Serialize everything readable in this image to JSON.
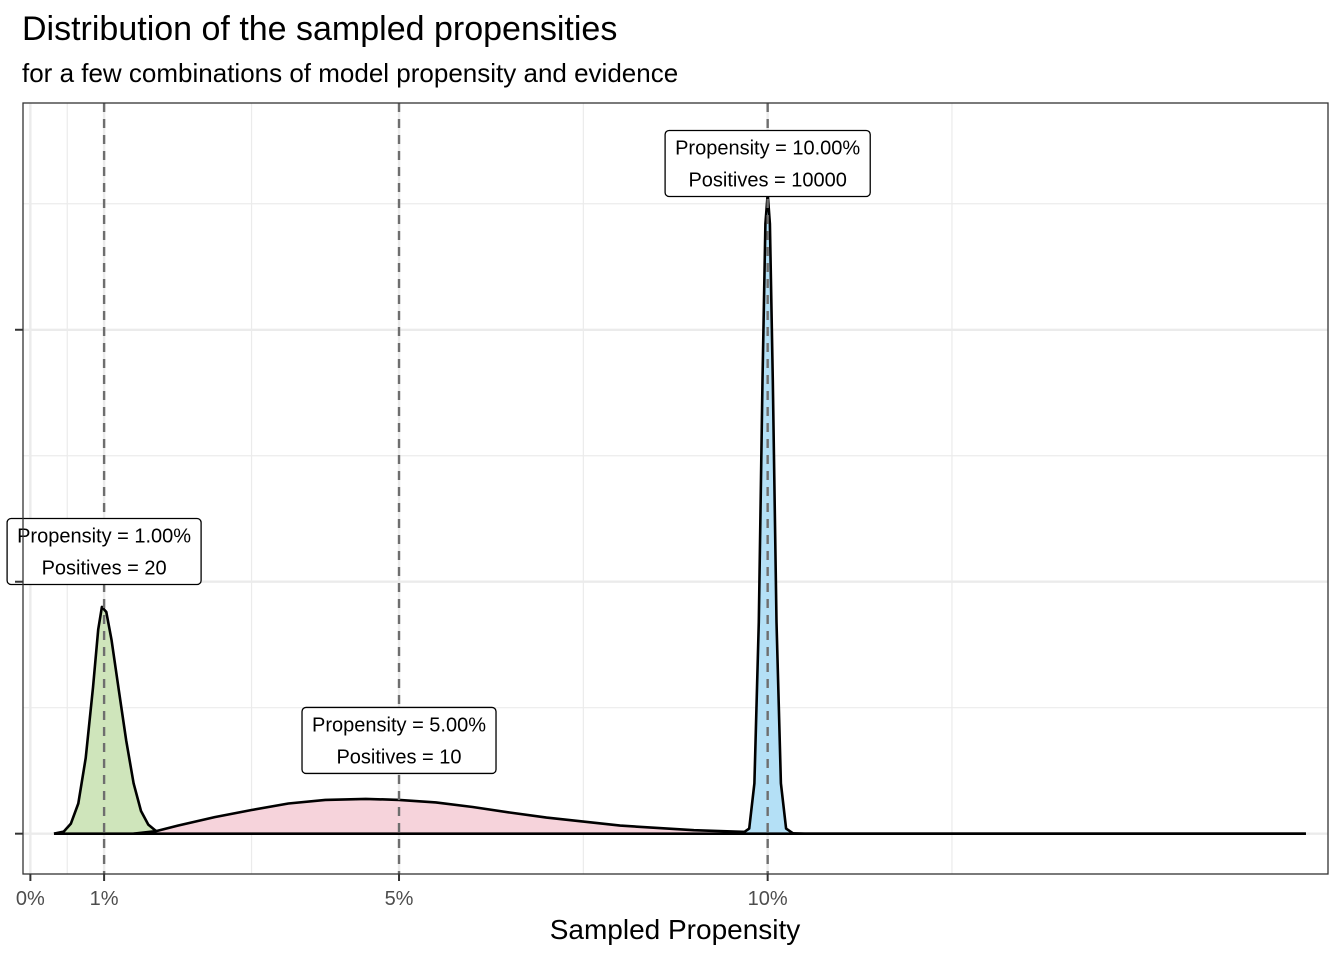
{
  "chart_data": {
    "type": "area",
    "title": "Distribution of the sampled propensities",
    "subtitle": "for a few combinations of model propensity and evidence",
    "xlabel": "Sampled Propensity",
    "ylabel": "",
    "xlim": [
      -0.001,
      0.176
    ],
    "ylim": [
      -0.8,
      14.5
    ],
    "x_ticks": [
      {
        "value": 0.0,
        "label": "0%"
      },
      {
        "value": 0.01,
        "label": "1%"
      },
      {
        "value": 0.05,
        "label": "5%"
      },
      {
        "value": 0.1,
        "label": "10%"
      }
    ],
    "y_tick_values": [
      0,
      5,
      10
    ],
    "grid": true,
    "reference_lines": [
      0.01,
      0.05,
      0.1
    ],
    "series": [
      {
        "propensity": 0.01,
        "positives": 20,
        "fill": "#cfe5bb",
        "annotation": {
          "line1": "Propensity = 1.00%",
          "line2": "Positives = 20",
          "y": 5.6
        },
        "x": [
          0.0032,
          0.0045,
          0.0055,
          0.0065,
          0.0075,
          0.0085,
          0.0092,
          0.0097,
          0.0103,
          0.011,
          0.012,
          0.013,
          0.014,
          0.015,
          0.016,
          0.017,
          0.018,
          0.0185
        ],
        "y": [
          0.0,
          0.04,
          0.2,
          0.6,
          1.5,
          2.9,
          4.05,
          4.5,
          4.4,
          3.85,
          2.85,
          1.85,
          1.0,
          0.45,
          0.18,
          0.06,
          0.01,
          0.0
        ]
      },
      {
        "propensity": 0.05,
        "positives": 10,
        "fill": "#f6d3db",
        "annotation": {
          "line1": "Propensity = 5.00%",
          "line2": "Positives = 10",
          "y": 1.85
        },
        "x": [
          0.014,
          0.017,
          0.02,
          0.025,
          0.03,
          0.035,
          0.04,
          0.0455,
          0.05,
          0.055,
          0.06,
          0.065,
          0.07,
          0.08,
          0.09,
          0.098,
          0.105,
          0.115,
          0.125,
          0.135,
          0.15,
          0.16,
          0.173
        ],
        "y": [
          0.0,
          0.05,
          0.16,
          0.33,
          0.47,
          0.6,
          0.67,
          0.69,
          0.67,
          0.62,
          0.53,
          0.42,
          0.32,
          0.16,
          0.07,
          0.03,
          0.0,
          0.0,
          0.0,
          0.0,
          0.0,
          0.0,
          0.0
        ]
      },
      {
        "propensity": 0.1,
        "positives": 10000,
        "fill": "#b4e0f6",
        "annotation": {
          "line1": "Propensity = 10.00%",
          "line2": "Positives = 10000",
          "y": 13.3
        },
        "x": [
          0.0965,
          0.0975,
          0.0982,
          0.0988,
          0.0993,
          0.0997,
          0.1,
          0.1003,
          0.1007,
          0.1012,
          0.1018,
          0.1025,
          0.1035
        ],
        "y": [
          0.0,
          0.1,
          1.0,
          4.2,
          9.0,
          12.1,
          12.7,
          12.1,
          9.0,
          4.2,
          1.0,
          0.1,
          0.0
        ]
      }
    ]
  }
}
